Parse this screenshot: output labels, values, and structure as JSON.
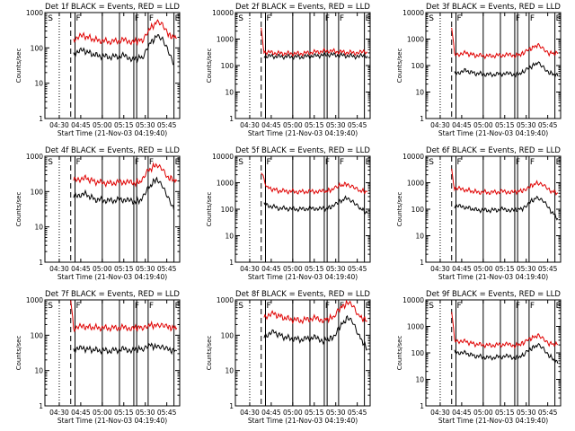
{
  "colors": {
    "events": "#000000",
    "lld": "#e00000",
    "axes": "#000000",
    "background": "#ffffff"
  },
  "shared": {
    "ylabel": "Counts/sec",
    "xlabel": "Start Time (21-Nov-03 04:19:40)",
    "xtick_labels": [
      "04:30",
      "04:45",
      "05:00",
      "05:15",
      "05:30",
      "05:45"
    ],
    "ytick_labels": [
      "1",
      "10",
      "100",
      "1000",
      "10000"
    ],
    "marker_labels": {
      "S": "S",
      "F": "F",
      "E": "E"
    }
  },
  "chart_data": [
    {
      "type": "line",
      "title": "Det 1f BLACK = Events, RED = LLD",
      "ylim": [
        1,
        10000
      ],
      "ymax_label": "1000",
      "xlim_minutes_after_start": [
        0,
        94
      ],
      "xlabel": "Start Time (21-Nov-03 04:19:40)",
      "ylabel": "Counts/sec",
      "series": [
        {
          "name": "Events",
          "values": [
            [
              20,
              70
            ],
            [
              27,
              85
            ],
            [
              35,
              62
            ],
            [
              45,
              55
            ],
            [
              55,
              60
            ],
            [
              62,
              48
            ],
            [
              68,
              55
            ],
            [
              72,
              120
            ],
            [
              78,
              210
            ],
            [
              82,
              160
            ],
            [
              86,
              80
            ],
            [
              90,
              35
            ]
          ]
        },
        {
          "name": "LLD",
          "values": [
            [
              20,
              180
            ],
            [
              27,
              220
            ],
            [
              35,
              170
            ],
            [
              45,
              150
            ],
            [
              55,
              165
            ],
            [
              62,
              150
            ],
            [
              68,
              170
            ],
            [
              72,
              320
            ],
            [
              78,
              520
            ],
            [
              82,
              420
            ],
            [
              86,
              230
            ],
            [
              92,
              190
            ]
          ]
        }
      ]
    },
    {
      "type": "line",
      "title": "Det 2f BLACK = Events, RED = LLD",
      "ylim": [
        1,
        10000
      ],
      "ymax_label": "10000",
      "xlim_minutes_after_start": [
        0,
        94
      ],
      "xlabel": "Start Time (21-Nov-03 04:19:40)",
      "ylabel": "Counts/sec",
      "series": [
        {
          "name": "Events",
          "values": [
            [
              20,
              230
            ],
            [
              30,
              220
            ],
            [
              45,
              210
            ],
            [
              55,
              230
            ],
            [
              65,
              260
            ],
            [
              75,
              240
            ],
            [
              85,
              220
            ],
            [
              92,
              230
            ]
          ]
        },
        {
          "name": "LLD",
          "values": [
            [
              18,
              2500
            ],
            [
              20,
              330
            ],
            [
              30,
              290
            ],
            [
              45,
              280
            ],
            [
              55,
              320
            ],
            [
              65,
              360
            ],
            [
              75,
              320
            ],
            [
              85,
              300
            ],
            [
              92,
              330
            ]
          ]
        }
      ]
    },
    {
      "type": "line",
      "title": "Det 3f BLACK = Events, RED = LLD",
      "ylim": [
        1,
        10000
      ],
      "ymax_label": "10000",
      "xlim_minutes_after_start": [
        0,
        94
      ],
      "xlabel": "Start Time (21-Nov-03 04:19:40)",
      "ylabel": "Counts/sec",
      "series": [
        {
          "name": "Events",
          "values": [
            [
              20,
              50
            ],
            [
              27,
              65
            ],
            [
              35,
              50
            ],
            [
              45,
              45
            ],
            [
              55,
              50
            ],
            [
              62,
              45
            ],
            [
              68,
              55
            ],
            [
              72,
              80
            ],
            [
              78,
              130
            ],
            [
              82,
              90
            ],
            [
              86,
              55
            ],
            [
              92,
              40
            ]
          ]
        },
        {
          "name": "LLD",
          "values": [
            [
              18,
              3000
            ],
            [
              20,
              260
            ],
            [
              27,
              300
            ],
            [
              35,
              240
            ],
            [
              45,
              230
            ],
            [
              55,
              250
            ],
            [
              62,
              240
            ],
            [
              68,
              280
            ],
            [
              72,
              400
            ],
            [
              78,
              600
            ],
            [
              82,
              450
            ],
            [
              86,
              300
            ],
            [
              92,
              280
            ]
          ]
        }
      ]
    },
    {
      "type": "line",
      "title": "Det 4f BLACK = Events, RED = LLD",
      "ylim": [
        1,
        10000
      ],
      "ymax_label": "1000",
      "xlim_minutes_after_start": [
        0,
        94
      ],
      "xlabel": "Start Time (21-Nov-03 04:19:40)",
      "ylabel": "Counts/sec",
      "series": [
        {
          "name": "Events",
          "values": [
            [
              20,
              70
            ],
            [
              27,
              90
            ],
            [
              35,
              60
            ],
            [
              45,
              55
            ],
            [
              55,
              60
            ],
            [
              62,
              50
            ],
            [
              68,
              60
            ],
            [
              72,
              120
            ],
            [
              78,
              240
            ],
            [
              82,
              160
            ],
            [
              86,
              70
            ],
            [
              90,
              30
            ]
          ]
        },
        {
          "name": "LLD",
          "values": [
            [
              20,
              200
            ],
            [
              27,
              250
            ],
            [
              35,
              190
            ],
            [
              45,
              170
            ],
            [
              55,
              190
            ],
            [
              62,
              170
            ],
            [
              68,
              200
            ],
            [
              72,
              380
            ],
            [
              78,
              600
            ],
            [
              82,
              480
            ],
            [
              86,
              250
            ],
            [
              92,
              200
            ]
          ]
        }
      ]
    },
    {
      "type": "line",
      "title": "Det 5f BLACK = Events, RED = LLD",
      "ylim": [
        1,
        10000
      ],
      "ymax_label": "10000",
      "xlim_minutes_after_start": [
        0,
        94
      ],
      "xlabel": "Start Time (21-Nov-03 04:19:40)",
      "ylabel": "Counts/sec",
      "series": [
        {
          "name": "Events",
          "values": [
            [
              20,
              150
            ],
            [
              30,
              110
            ],
            [
              45,
              100
            ],
            [
              55,
              110
            ],
            [
              62,
              100
            ],
            [
              68,
              130
            ],
            [
              72,
              180
            ],
            [
              78,
              280
            ],
            [
              82,
              200
            ],
            [
              86,
              120
            ],
            [
              92,
              70
            ]
          ]
        },
        {
          "name": "LLD",
          "values": [
            [
              18,
              2500
            ],
            [
              22,
              650
            ],
            [
              30,
              500
            ],
            [
              45,
              450
            ],
            [
              55,
              480
            ],
            [
              62,
              460
            ],
            [
              68,
              560
            ],
            [
              72,
              750
            ],
            [
              78,
              900
            ],
            [
              82,
              750
            ],
            [
              86,
              520
            ],
            [
              92,
              450
            ]
          ]
        }
      ]
    },
    {
      "type": "line",
      "title": "Det 6f BLACK = Events, RED = LLD",
      "ylim": [
        1,
        10000
      ],
      "ymax_label": "10000",
      "xlim_minutes_after_start": [
        0,
        94
      ],
      "xlabel": "Start Time (21-Nov-03 04:19:40)",
      "ylabel": "Counts/sec",
      "series": [
        {
          "name": "Events",
          "values": [
            [
              20,
              130
            ],
            [
              27,
              120
            ],
            [
              35,
              95
            ],
            [
              45,
              90
            ],
            [
              55,
              100
            ],
            [
              62,
              90
            ],
            [
              68,
              110
            ],
            [
              72,
              180
            ],
            [
              78,
              280
            ],
            [
              82,
              200
            ],
            [
              86,
              100
            ],
            [
              92,
              45
            ]
          ]
        },
        {
          "name": "LLD",
          "values": [
            [
              18,
              3000
            ],
            [
              20,
              600
            ],
            [
              27,
              550
            ],
            [
              35,
              450
            ],
            [
              45,
              430
            ],
            [
              55,
              470
            ],
            [
              62,
              440
            ],
            [
              68,
              520
            ],
            [
              72,
              700
            ],
            [
              78,
              1000
            ],
            [
              82,
              800
            ],
            [
              86,
              500
            ],
            [
              92,
              420
            ]
          ]
        }
      ]
    },
    {
      "type": "line",
      "title": "Det 7f BLACK = Events, RED = LLD",
      "ylim": [
        1,
        10000
      ],
      "ymax_label": "1000",
      "xlim_minutes_after_start": [
        0,
        94
      ],
      "xlabel": "Start Time (21-Nov-03 04:19:40)",
      "ylabel": "Counts/sec",
      "series": [
        {
          "name": "Events",
          "values": [
            [
              20,
              40
            ],
            [
              27,
              42
            ],
            [
              35,
              38
            ],
            [
              45,
              36
            ],
            [
              55,
              40
            ],
            [
              62,
              38
            ],
            [
              68,
              42
            ],
            [
              72,
              55
            ],
            [
              78,
              45
            ],
            [
              82,
              42
            ],
            [
              86,
              38
            ],
            [
              92,
              36
            ]
          ]
        },
        {
          "name": "LLD",
          "values": [
            [
              18,
              1200
            ],
            [
              20,
              160
            ],
            [
              27,
              175
            ],
            [
              35,
              165
            ],
            [
              45,
              160
            ],
            [
              55,
              165
            ],
            [
              62,
              160
            ],
            [
              68,
              170
            ],
            [
              72,
              200
            ],
            [
              78,
              180
            ],
            [
              82,
              175
            ],
            [
              86,
              165
            ],
            [
              92,
              160
            ]
          ]
        }
      ]
    },
    {
      "type": "line",
      "title": "Det 8f BLACK = Events, RED = LLD",
      "ylim": [
        1,
        10000
      ],
      "ymax_label": "1000",
      "xlim_minutes_after_start": [
        0,
        94
      ],
      "xlabel": "Start Time (21-Nov-03 04:19:40)",
      "ylabel": "Counts/sec",
      "series": [
        {
          "name": "Events",
          "values": [
            [
              20,
              100
            ],
            [
              27,
              120
            ],
            [
              35,
              85
            ],
            [
              45,
              75
            ],
            [
              55,
              85
            ],
            [
              62,
              70
            ],
            [
              68,
              85
            ],
            [
              72,
              160
            ],
            [
              78,
              300
            ],
            [
              82,
              220
            ],
            [
              86,
              100
            ],
            [
              92,
              40
            ]
          ]
        },
        {
          "name": "LLD",
          "values": [
            [
              20,
              350
            ],
            [
              27,
              400
            ],
            [
              35,
              300
            ],
            [
              45,
              260
            ],
            [
              55,
              300
            ],
            [
              62,
              270
            ],
            [
              68,
              320
            ],
            [
              72,
              550
            ],
            [
              78,
              800
            ],
            [
              82,
              650
            ],
            [
              86,
              350
            ],
            [
              92,
              250
            ]
          ]
        }
      ]
    },
    {
      "type": "line",
      "title": "Det 9f BLACK = Events, RED = LLD",
      "ylim": [
        1,
        10000
      ],
      "ymax_label": "10000",
      "xlim_minutes_after_start": [
        0,
        94
      ],
      "xlabel": "Start Time (21-Nov-03 04:19:40)",
      "ylabel": "Counts/sec",
      "series": [
        {
          "name": "Events",
          "values": [
            [
              20,
              110
            ],
            [
              27,
              100
            ],
            [
              35,
              75
            ],
            [
              45,
              65
            ],
            [
              55,
              75
            ],
            [
              62,
              65
            ],
            [
              68,
              80
            ],
            [
              72,
              130
            ],
            [
              78,
              200
            ],
            [
              82,
              150
            ],
            [
              86,
              80
            ],
            [
              92,
              40
            ]
          ]
        },
        {
          "name": "LLD",
          "values": [
            [
              18,
              4000
            ],
            [
              20,
              300
            ],
            [
              27,
              270
            ],
            [
              35,
              210
            ],
            [
              45,
              190
            ],
            [
              55,
              210
            ],
            [
              62,
              190
            ],
            [
              68,
              230
            ],
            [
              72,
              330
            ],
            [
              78,
              450
            ],
            [
              82,
              350
            ],
            [
              86,
              230
            ],
            [
              92,
              200
            ]
          ]
        }
      ]
    }
  ],
  "markers": {
    "S_minutes": 2,
    "dotted_minutes": [
      10,
      94
    ],
    "dashed_minutes": 18,
    "solid_minutes": [
      21,
      40,
      52,
      62,
      64,
      72,
      90
    ],
    "F_minutes": [
      21,
      62,
      72
    ],
    "E_minutes": 90
  }
}
